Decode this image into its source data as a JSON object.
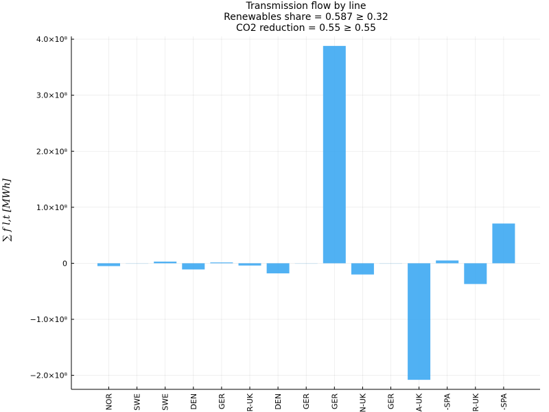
{
  "chart_data": {
    "type": "bar",
    "title_lines": [
      "Transmission flow by line",
      "Renewables share = 0.587 ≥ 0.32",
      "CO2 reduction = 0.55 ≥ 0.55"
    ],
    "ylabel": "∑ f l,t [MWh]",
    "ylabel_sub": "t",
    "ylim": [
      -225000000,
      405000000
    ],
    "y_ticks": [
      {
        "value": 400000000,
        "label": "4.0×10⁸"
      },
      {
        "value": 300000000,
        "label": "3.0×10⁸"
      },
      {
        "value": 200000000,
        "label": "2.0×10⁸"
      },
      {
        "value": 100000000,
        "label": "1.0×10⁸"
      },
      {
        "value": 0,
        "label": "0"
      },
      {
        "value": -100000000,
        "label": "−1.0×10⁸"
      },
      {
        "value": -200000000,
        "label": "−2.0×10⁸"
      }
    ],
    "categories": [
      "NOR",
      "SWE",
      "SWE",
      "DEN",
      "GER",
      "R-UK",
      "DEN",
      "GER",
      "GER",
      "N-UK",
      "GER",
      "A-UK",
      "-SPA",
      "R-UK",
      "-SPA"
    ],
    "values": [
      -5000000,
      0,
      3000000,
      -11000000,
      1500000,
      -4000000,
      -18000000,
      0,
      388000000,
      -20000000,
      0,
      -208000000,
      5000000,
      -37000000,
      71000000
    ],
    "bar_color": "#3da8f2",
    "grid": true,
    "legend": "none"
  }
}
